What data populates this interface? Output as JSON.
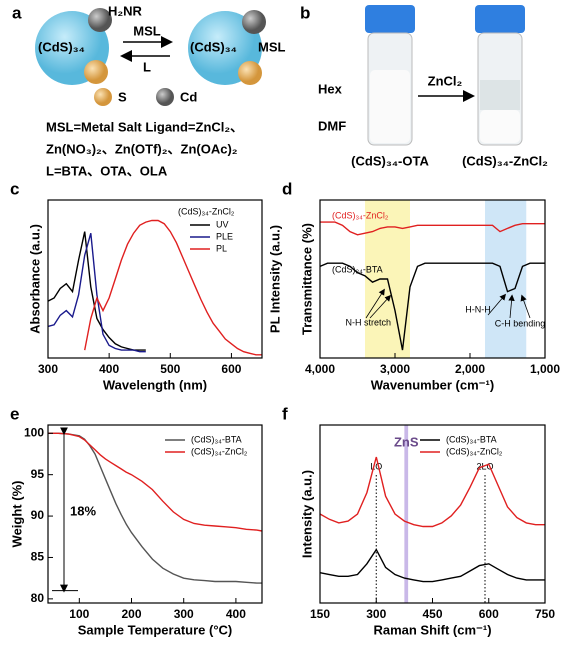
{
  "panels": {
    "a": {
      "letter": "a",
      "ligand": "H₂NR",
      "left_cluster": "(CdS)₃₄",
      "forward": "MSL",
      "backward": "L",
      "right_cluster": "(CdS)₃₄",
      "right_ligand": "MSL",
      "key_s": "S",
      "key_cd": "Cd",
      "lines": [
        "MSL=Metal Salt Ligand=ZnCl₂、",
        "Zn(NO₃)₂、Zn(OTf)₂、Zn(OAc)₂",
        "L=BTA、OTA、OLA"
      ]
    },
    "b": {
      "letter": "b",
      "top_phase": "Hex",
      "bottom_phase": "DMF",
      "reagent": "ZnCl₂",
      "left_sample": "(CdS)₃₄-OTA",
      "right_sample": "(CdS)₃₄-ZnCl₂"
    }
  },
  "chart_data": [
    {
      "type": "line",
      "label": "c",
      "xlabel": "Wavelength (nm)",
      "ylabel": "Absorbance (a.u.)",
      "y2label": "PL Intensity (a.u.)",
      "xlim": [
        300,
        650
      ],
      "xticks": [
        300,
        400,
        500,
        600
      ],
      "ylim": [
        0,
        1
      ],
      "legend": "upper right",
      "legend_title": "(CdS)₃₄-ZnCl₂",
      "x": [
        300,
        310,
        320,
        330,
        340,
        350,
        360,
        370,
        380,
        390,
        400,
        410,
        420,
        430,
        440,
        450,
        460,
        470,
        480,
        490,
        500,
        510,
        520,
        530,
        540,
        550,
        560,
        570,
        580,
        590,
        600,
        610,
        620,
        630,
        640,
        650
      ],
      "series": [
        {
          "name": "UV",
          "color": "#000000",
          "values": [
            0.36,
            0.38,
            0.44,
            0.47,
            0.42,
            0.62,
            0.8,
            0.45,
            0.25,
            0.18,
            0.13,
            0.09,
            0.07,
            0.06,
            0.05,
            0.05,
            0.05,
            null,
            null,
            null,
            null,
            null,
            null,
            null,
            null,
            null,
            null,
            null,
            null,
            null,
            null,
            null,
            null,
            null,
            null,
            null
          ]
        },
        {
          "name": "PLE",
          "color": "#1a1a8c",
          "values": [
            0.2,
            0.21,
            0.27,
            0.3,
            0.26,
            0.4,
            0.65,
            0.79,
            0.4,
            0.15,
            0.08,
            0.06,
            0.05,
            0.05,
            0.05,
            0.04,
            0.04,
            null,
            null,
            null,
            null,
            null,
            null,
            null,
            null,
            null,
            null,
            null,
            null,
            null,
            null,
            null,
            null,
            null,
            null,
            null
          ]
        },
        {
          "name": "PL",
          "color": "#e02020",
          "values": [
            null,
            null,
            null,
            null,
            null,
            null,
            0.05,
            0.25,
            0.38,
            0.3,
            0.38,
            0.5,
            0.62,
            0.72,
            0.79,
            0.84,
            0.86,
            0.87,
            0.87,
            0.85,
            0.8,
            0.73,
            0.64,
            0.55,
            0.46,
            0.37,
            0.29,
            0.22,
            0.17,
            0.12,
            0.09,
            0.06,
            0.04,
            0.03,
            0.02,
            0.02
          ]
        }
      ]
    },
    {
      "type": "line",
      "label": "d",
      "xlabel": "Wavenumber (cm⁻¹)",
      "ylabel": "Transmittance (%)",
      "xlim": [
        4000,
        1000
      ],
      "xticks": [
        {
          "value": 4000,
          "label": "4,000"
        },
        {
          "value": 3000,
          "label": "3,000"
        },
        {
          "value": 2000,
          "label": "2,000"
        },
        {
          "value": 1000,
          "label": "1,000"
        }
      ],
      "ylim": [
        0,
        1
      ],
      "legend": "inline",
      "bands": [
        {
          "from": 3400,
          "to": 2800,
          "color": "#fbf5b8"
        },
        {
          "from": 1800,
          "to": 1250,
          "color": "#cfe6f7"
        }
      ],
      "annotations": [
        "N-H stretch",
        "H-N-H",
        "C-H bending"
      ],
      "x": [
        4000,
        3900,
        3800,
        3700,
        3600,
        3500,
        3400,
        3300,
        3200,
        3100,
        3000,
        2900,
        2800,
        2700,
        2600,
        2500,
        2400,
        2300,
        2200,
        2100,
        2000,
        1900,
        1800,
        1700,
        1600,
        1500,
        1400,
        1300,
        1200,
        1100,
        1000
      ],
      "series": [
        {
          "name": "(CdS)₃₄-ZnCl₂",
          "color": "#e02020",
          "values": [
            0.86,
            0.86,
            0.86,
            0.84,
            0.8,
            0.78,
            0.79,
            0.8,
            0.82,
            0.83,
            0.83,
            0.82,
            0.83,
            0.84,
            0.84,
            0.84,
            0.84,
            0.84,
            0.84,
            0.84,
            0.84,
            0.84,
            0.84,
            0.84,
            0.8,
            0.82,
            0.84,
            0.85,
            0.85,
            0.85,
            0.85
          ]
        },
        {
          "name": "(CdS)₃₄-BTA",
          "color": "#000000",
          "values": [
            0.58,
            0.6,
            0.6,
            0.6,
            0.58,
            0.54,
            0.52,
            0.48,
            0.5,
            0.5,
            0.3,
            0.05,
            0.45,
            0.58,
            0.6,
            0.6,
            0.6,
            0.6,
            0.6,
            0.6,
            0.6,
            0.6,
            0.6,
            0.6,
            0.58,
            0.42,
            0.44,
            0.58,
            0.6,
            0.6,
            0.6
          ]
        }
      ]
    },
    {
      "type": "line",
      "label": "e",
      "xlabel": "Sample Temperature (°C)",
      "ylabel": "Weight (%)",
      "xlim": [
        40,
        450
      ],
      "xticks": [
        100,
        200,
        300,
        400
      ],
      "ylim": [
        79.5,
        101
      ],
      "yticks": [
        80,
        85,
        90,
        95,
        100
      ],
      "legend": "upper right",
      "span": {
        "from": 100,
        "to": 81,
        "label": "18%"
      },
      "x": [
        40,
        60,
        80,
        100,
        110,
        120,
        130,
        140,
        150,
        160,
        170,
        180,
        190,
        200,
        220,
        240,
        260,
        280,
        300,
        320,
        340,
        360,
        380,
        400,
        420,
        440,
        450
      ],
      "series": [
        {
          "name": "(CdS)₃₄-BTA",
          "color": "#555555",
          "values": [
            100,
            100,
            99.9,
            99.7,
            99.3,
            98.5,
            97.5,
            96,
            94.5,
            93,
            91.5,
            90.2,
            89,
            88,
            86.3,
            84.8,
            83.7,
            83,
            82.5,
            82.3,
            82.2,
            82.1,
            82.1,
            82.1,
            82,
            81.9,
            81.9
          ]
        },
        {
          "name": "(CdS)₃₄-ZnCl₂",
          "color": "#e02020",
          "values": [
            100,
            100,
            99.9,
            99.6,
            99.2,
            98.6,
            98,
            97.4,
            96.9,
            96.5,
            96.1,
            95.7,
            95.3,
            95,
            94.2,
            93.2,
            91.8,
            90.5,
            89.6,
            89.1,
            88.9,
            88.8,
            88.7,
            88.6,
            88.4,
            88.3,
            88.2
          ]
        }
      ]
    },
    {
      "type": "line",
      "label": "f",
      "xlabel": "Raman Shift (cm⁻¹)",
      "ylabel": "Intensity (a.u.)",
      "xlim": [
        150,
        750
      ],
      "xticks": [
        150,
        300,
        450,
        600,
        750
      ],
      "ylim": [
        0,
        1
      ],
      "legend": "upper right",
      "bands": [
        {
          "from": 375,
          "to": 385,
          "color": "#c9b8e8",
          "label": "ZnS"
        }
      ],
      "vlines": [
        {
          "value": 300,
          "label": "LO"
        },
        {
          "value": 590,
          "label": "2LO"
        }
      ],
      "x": [
        150,
        175,
        200,
        225,
        250,
        275,
        300,
        325,
        350,
        375,
        400,
        425,
        450,
        475,
        500,
        525,
        550,
        575,
        600,
        625,
        650,
        675,
        700,
        725,
        750
      ],
      "series": [
        {
          "name": "(CdS)₃₄-BTA",
          "color": "#000000",
          "values": [
            0.17,
            0.16,
            0.15,
            0.15,
            0.16,
            0.22,
            0.3,
            0.2,
            0.16,
            0.14,
            0.13,
            0.12,
            0.12,
            0.13,
            0.14,
            0.15,
            0.18,
            0.21,
            0.22,
            0.19,
            0.16,
            0.14,
            0.13,
            0.13,
            0.13
          ]
        },
        {
          "name": "(CdS)₃₄-ZnCl₂",
          "color": "#e02020",
          "values": [
            0.5,
            0.47,
            0.45,
            0.46,
            0.5,
            0.62,
            0.82,
            0.6,
            0.5,
            0.46,
            0.44,
            0.43,
            0.43,
            0.45,
            0.49,
            0.55,
            0.65,
            0.76,
            0.78,
            0.66,
            0.54,
            0.48,
            0.45,
            0.44,
            0.44
          ]
        }
      ]
    }
  ]
}
